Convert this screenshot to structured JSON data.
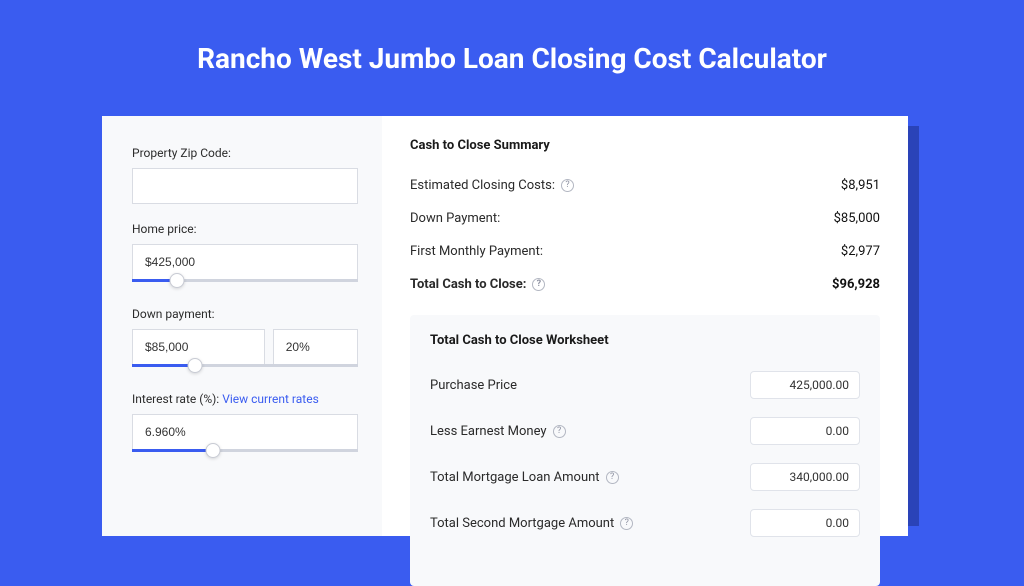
{
  "colors": {
    "page_bg": "#3a5cf0",
    "card_bg": "#ffffff",
    "left_bg": "#f8f9fb",
    "input_border": "#d9dce3",
    "slider_track": "#d0d4de",
    "slider_fill": "#3a5cf0",
    "link": "#3a5cf0",
    "shadow": "#1d2f8a"
  },
  "title": "Rancho West Jumbo Loan Closing Cost Calculator",
  "form": {
    "zip": {
      "label": "Property Zip Code:",
      "value": ""
    },
    "home_price": {
      "label": "Home price:",
      "value": "$425,000",
      "slider_pct": 20
    },
    "down_payment": {
      "label": "Down payment:",
      "value": "$85,000",
      "pct": "20%",
      "slider_pct": 28
    },
    "interest": {
      "label_prefix": "Interest rate (%): ",
      "link_text": "View current rates",
      "value": "6.960%",
      "slider_pct": 36
    }
  },
  "summary": {
    "title": "Cash to Close Summary",
    "rows": [
      {
        "label": "Estimated Closing Costs:",
        "help": true,
        "value": "$8,951",
        "bold": false
      },
      {
        "label": "Down Payment:",
        "help": false,
        "value": "$85,000",
        "bold": false
      },
      {
        "label": "First Monthly Payment:",
        "help": false,
        "value": "$2,977",
        "bold": false
      },
      {
        "label": "Total Cash to Close:",
        "help": true,
        "value": "$96,928",
        "bold": true
      }
    ]
  },
  "worksheet": {
    "title": "Total Cash to Close Worksheet",
    "rows": [
      {
        "label": "Purchase Price",
        "help": false,
        "value": "425,000.00"
      },
      {
        "label": "Less Earnest Money",
        "help": true,
        "value": "0.00"
      },
      {
        "label": "Total Mortgage Loan Amount",
        "help": true,
        "value": "340,000.00"
      },
      {
        "label": "Total Second Mortgage Amount",
        "help": true,
        "value": "0.00"
      }
    ]
  }
}
